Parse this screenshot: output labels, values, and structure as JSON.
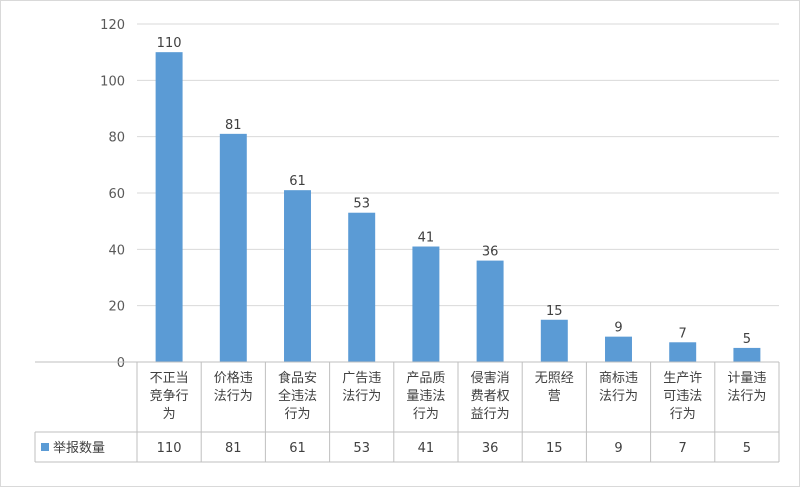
{
  "chart_data": {
    "type": "bar",
    "categories": [
      "不正当竞争行为",
      "价格违法行为",
      "食品安全违法行为",
      "广告违法行为",
      "产品质量违法行为",
      "侵害消费者权益行为",
      "无照经营",
      "商标违法行为",
      "生产许可违法行为",
      "计量违法行为"
    ],
    "category_lines": [
      [
        "不正当",
        "竞争行",
        "为"
      ],
      [
        "价格违",
        "法行为"
      ],
      [
        "食品安",
        "全违法",
        "行为"
      ],
      [
        "广告违",
        "法行为"
      ],
      [
        "产品质",
        "量违法",
        "行为"
      ],
      [
        "侵害消",
        "费者权",
        "益行为"
      ],
      [
        "无照经",
        "营"
      ],
      [
        "商标违",
        "法行为"
      ],
      [
        "生产许",
        "可违法",
        "行为"
      ],
      [
        "计量违",
        "法行为"
      ]
    ],
    "series": [
      {
        "name": "举报数量",
        "values": [
          110,
          81,
          61,
          53,
          41,
          36,
          15,
          9,
          7,
          5
        ],
        "color": "#5B9BD5"
      }
    ],
    "ylim": [
      0,
      120
    ],
    "yticks": [
      0,
      20,
      40,
      60,
      80,
      100,
      120
    ],
    "grid": true,
    "data_table": true,
    "legend": "data-table",
    "title": "",
    "xlabel": "",
    "ylabel": ""
  }
}
